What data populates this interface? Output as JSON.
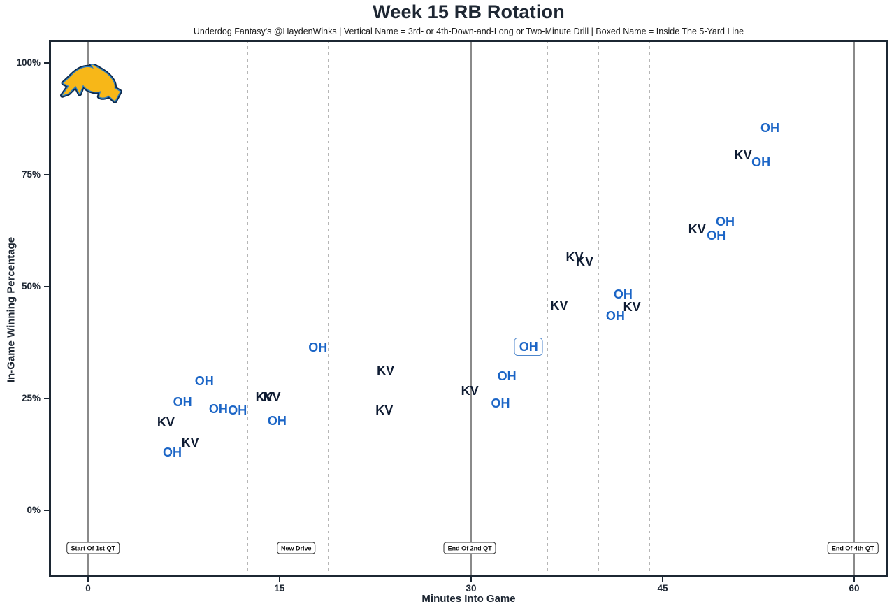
{
  "header": {
    "title": "Week 15 RB Rotation",
    "subtitle": "Underdog Fantasy's @HaydenWinks | Vertical Name = 3rd- or 4th-Down-and-Long or Two-Minute Drill | Boxed Name = Inside The 5-Yard Line"
  },
  "colors": {
    "oh_blue": "#1b65c6",
    "kv_navy": "#0f1c33",
    "axis_text": "#1e2733",
    "plot_border": "#1c2733",
    "solid_line_gray": "#8a8a8a",
    "dashed_line_gray": "#b6b6b6",
    "boxed_point_border": "#4d86cc",
    "logo_gold": "#f7b718",
    "logo_navy": "#0d2a4d",
    "logo_powder_blue": "#2d7dc1"
  },
  "chart_data": {
    "type": "scatter",
    "title": "Week 15 RB Rotation",
    "subtitle": "Underdog Fantasy's @HaydenWinks | Vertical Name = 3rd- or 4th-Down-and-Long or Two-Minute Drill | Boxed Name = Inside The 5-Yard Line",
    "xlabel": "Minutes Into Game",
    "ylabel": "In-Game Winning Percentage",
    "xlim": [
      -3.1,
      62.7
    ],
    "ylim": [
      -15,
      105
    ],
    "grid": "vertical-dashed-drive-lines",
    "legend": "none",
    "x_ticks": [
      0,
      15,
      30,
      45,
      60
    ],
    "y_ticks": [
      {
        "label": "0%",
        "value": 0
      },
      {
        "label": "25%",
        "value": 25
      },
      {
        "label": "50%",
        "value": 50
      },
      {
        "label": "75%",
        "value": 75
      },
      {
        "label": "100%",
        "value": 100
      }
    ],
    "series": [
      {
        "name": "OH",
        "color": "#1b65c6",
        "points": [
          {
            "m": 6.6,
            "pct": 13.0
          },
          {
            "m": 7.4,
            "pct": 24.2
          },
          {
            "m": 9.1,
            "pct": 28.9
          },
          {
            "m": 10.2,
            "pct": 22.7
          },
          {
            "m": 11.7,
            "pct": 22.3
          },
          {
            "m": 14.8,
            "pct": 20.0
          },
          {
            "m": 18.0,
            "pct": 36.4
          },
          {
            "m": 32.3,
            "pct": 23.9
          },
          {
            "m": 32.8,
            "pct": 30.0
          },
          {
            "m": 34.5,
            "pct": 36.6,
            "boxed": true
          },
          {
            "m": 41.3,
            "pct": 43.4
          },
          {
            "m": 41.9,
            "pct": 48.3
          },
          {
            "m": 49.2,
            "pct": 61.4
          },
          {
            "m": 49.9,
            "pct": 64.5
          },
          {
            "m": 52.7,
            "pct": 77.8
          },
          {
            "m": 53.4,
            "pct": 85.5
          }
        ]
      },
      {
        "name": "KV",
        "color": "#0f1c33",
        "points": [
          {
            "m": 6.1,
            "pct": 19.7
          },
          {
            "m": 8.0,
            "pct": 15.2
          },
          {
            "m": 13.8,
            "pct": 25.3
          },
          {
            "m": 14.4,
            "pct": 25.3
          },
          {
            "m": 23.2,
            "pct": 22.3
          },
          {
            "m": 23.3,
            "pct": 31.3
          },
          {
            "m": 29.9,
            "pct": 26.7
          },
          {
            "m": 36.9,
            "pct": 45.8
          },
          {
            "m": 38.1,
            "pct": 56.6
          },
          {
            "m": 38.9,
            "pct": 55.6
          },
          {
            "m": 42.6,
            "pct": 45.5
          },
          {
            "m": 47.7,
            "pct": 62.8
          },
          {
            "m": 51.3,
            "pct": 79.4
          }
        ]
      }
    ],
    "vlines_solid_minutes": [
      0,
      30,
      60
    ],
    "vlines_dashed_minutes": [
      12.5,
      16.3,
      18.8,
      27.0,
      36.0,
      40.0,
      44.0,
      54.5
    ],
    "annotations": [
      {
        "label": "Start Of 1st QT",
        "minute": 0.4
      },
      {
        "label": "New Drive",
        "minute": 16.3
      },
      {
        "label": "End Of 2nd QT",
        "minute": 29.9
      },
      {
        "label": "End Of 4th QT",
        "minute": 59.9
      }
    ],
    "logo": "los-angeles-chargers-bolt"
  }
}
